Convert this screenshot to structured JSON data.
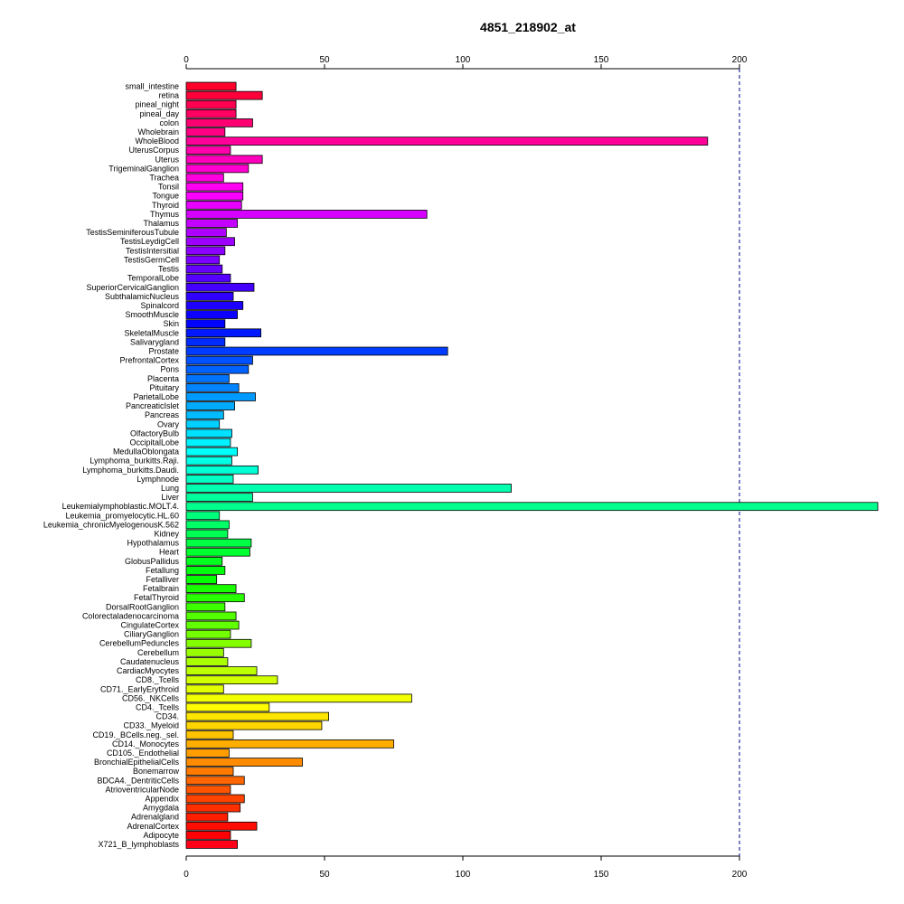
{
  "chart_data": {
    "type": "bar",
    "orientation": "horizontal",
    "title": "4851_218902_at",
    "xlabel": "",
    "ylabel": "",
    "xlim": [
      0,
      250
    ],
    "x_ticks": [
      0,
      50,
      100,
      150,
      200
    ],
    "axis_position": "top-and-bottom",
    "reference_line": {
      "x": 200,
      "style": "dashed",
      "color": "#00008b"
    },
    "grid": false,
    "categories": [
      "small_intestine",
      "retina",
      "pineal_night",
      "pineal_day",
      "colon",
      "Wholebrain",
      "WholeBlood",
      "UterusCorpus",
      "Uterus",
      "TrigeminalGanglion",
      "Trachea",
      "Tonsil",
      "Tongue",
      "Thyroid",
      "Thymus",
      "Thalamus",
      "TestisSeminiferousTubule",
      "TestisLeydigCell",
      "TestisIntersitial",
      "TestisGermCell",
      "Testis",
      "TemporalLobe",
      "SuperiorCervicalGanglion",
      "SubthalamicNucleus",
      "Spinalcord",
      "SmoothMuscle",
      "Skin",
      "SkeletalMuscle",
      "Salivarygland",
      "Prostate",
      "PrefrontalCortex",
      "Pons",
      "Placenta",
      "Pituitary",
      "ParietalLobe",
      "PancreaticIslet",
      "Pancreas",
      "Ovary",
      "OlfactoryBulb",
      "OccipitalLobe",
      "MedullaOblongata",
      "Lymphoma_burkitts.Raji.",
      "Lymphoma_burkitts.Daudi.",
      "Lymphnode",
      "Lung",
      "Liver",
      "Leukemialymphoblastic.MOLT.4.",
      "Leukemia_promyelocytic.HL.60",
      "Leukemia_chronicMyelogenousK.562",
      "Kidney",
      "Hypothalamus",
      "Heart",
      "GlobusPallidus",
      "Fetallung",
      "Fetalliver",
      "Fetalbrain",
      "FetalThyroid",
      "DorsalRootGanglion",
      "Colorectaladenocarcinoma",
      "CingulateCortex",
      "CiliaryGanglion",
      "CerebellumPeduncles",
      "Cerebellum",
      "Caudatenucleus",
      "CardiacMyocytes",
      "CD8._Tcells",
      "CD71._EarlyErythroid",
      "CD56._NKCells",
      "CD4._Tcells",
      "CD34.",
      "CD33._Myeloid",
      "CD19._BCells.neg._sel.",
      "CD14._Monocytes",
      "CD105._Endothelial",
      "BronchialEpithelialCells",
      "Bonemarrow",
      "BDCA4._DentriticCells",
      "AtrioventricularNode",
      "Appendix",
      "Amygdala",
      "Adrenalgland",
      "AdrenalCortex",
      "Adipocyte",
      "X721_B_lymphoblasts"
    ],
    "values": [
      18,
      27.5,
      18,
      18,
      24,
      14,
      188.5,
      16,
      27.5,
      22.5,
      13.5,
      20.5,
      20.5,
      20,
      87,
      18.5,
      14.5,
      17.5,
      14,
      12,
      13,
      16,
      24.5,
      17,
      20.5,
      18.5,
      14,
      27,
      14,
      94.5,
      24,
      22.5,
      15.5,
      19,
      25,
      17.5,
      13.5,
      12,
      16.5,
      16,
      18.5,
      16.5,
      26,
      17,
      117.5,
      24,
      250,
      12,
      15.5,
      15,
      23.5,
      23,
      13,
      14,
      11,
      18,
      21,
      14,
      18,
      19,
      16,
      23.5,
      13.5,
      15,
      25.5,
      33,
      13.5,
      81.5,
      30,
      51.5,
      49,
      17,
      75,
      15.5,
      42,
      17,
      21,
      16,
      21,
      19.5,
      15,
      25.5,
      16,
      18.5
    ]
  }
}
